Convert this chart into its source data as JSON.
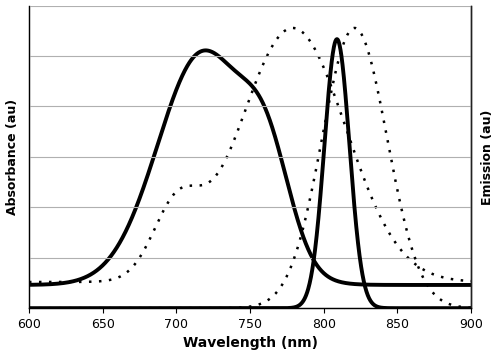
{
  "xlabel": "Wavelength (nm)",
  "ylabel_left": "Absorbance (au)",
  "ylabel_right": "Emission (au)",
  "xmin": 600,
  "xmax": 900,
  "background_color": "#ffffff",
  "line_color": "#000000",
  "grid_color": "#b0b0b0",
  "figsize": [
    5.0,
    3.56
  ],
  "dpi": 100,
  "curves": {
    "np_absorbance": {
      "peak1": 718,
      "fwhm1": 72,
      "amp1": 1.0,
      "peak2": 762,
      "fwhm2": 38,
      "amp2": 0.38,
      "baseline": 0.1,
      "scale": 0.92,
      "linewidth": 2.8
    },
    "icg_absorbance": {
      "peak1": 779,
      "fwhm1": 85,
      "amp1": 0.68,
      "peak2": 700,
      "fwhm2": 38,
      "amp2": 0.18,
      "baseline": 0.07,
      "scale": 1.0,
      "linewidth": 1.8
    },
    "np_emission": {
      "peak1": 809,
      "fwhm1": 20,
      "amp1": 1.0,
      "baseline": 0.0,
      "scale": 0.96,
      "linewidth": 2.8
    },
    "icg_emission": {
      "peak1": 821,
      "fwhm1": 52,
      "amp1": 0.92,
      "baseline": 0.0,
      "scale": 1.0,
      "linewidth": 1.8
    }
  },
  "xticks": [
    600,
    650,
    700,
    750,
    800,
    850,
    900
  ],
  "ylim": [
    0,
    1.08
  ],
  "n_grid_lines": 7
}
